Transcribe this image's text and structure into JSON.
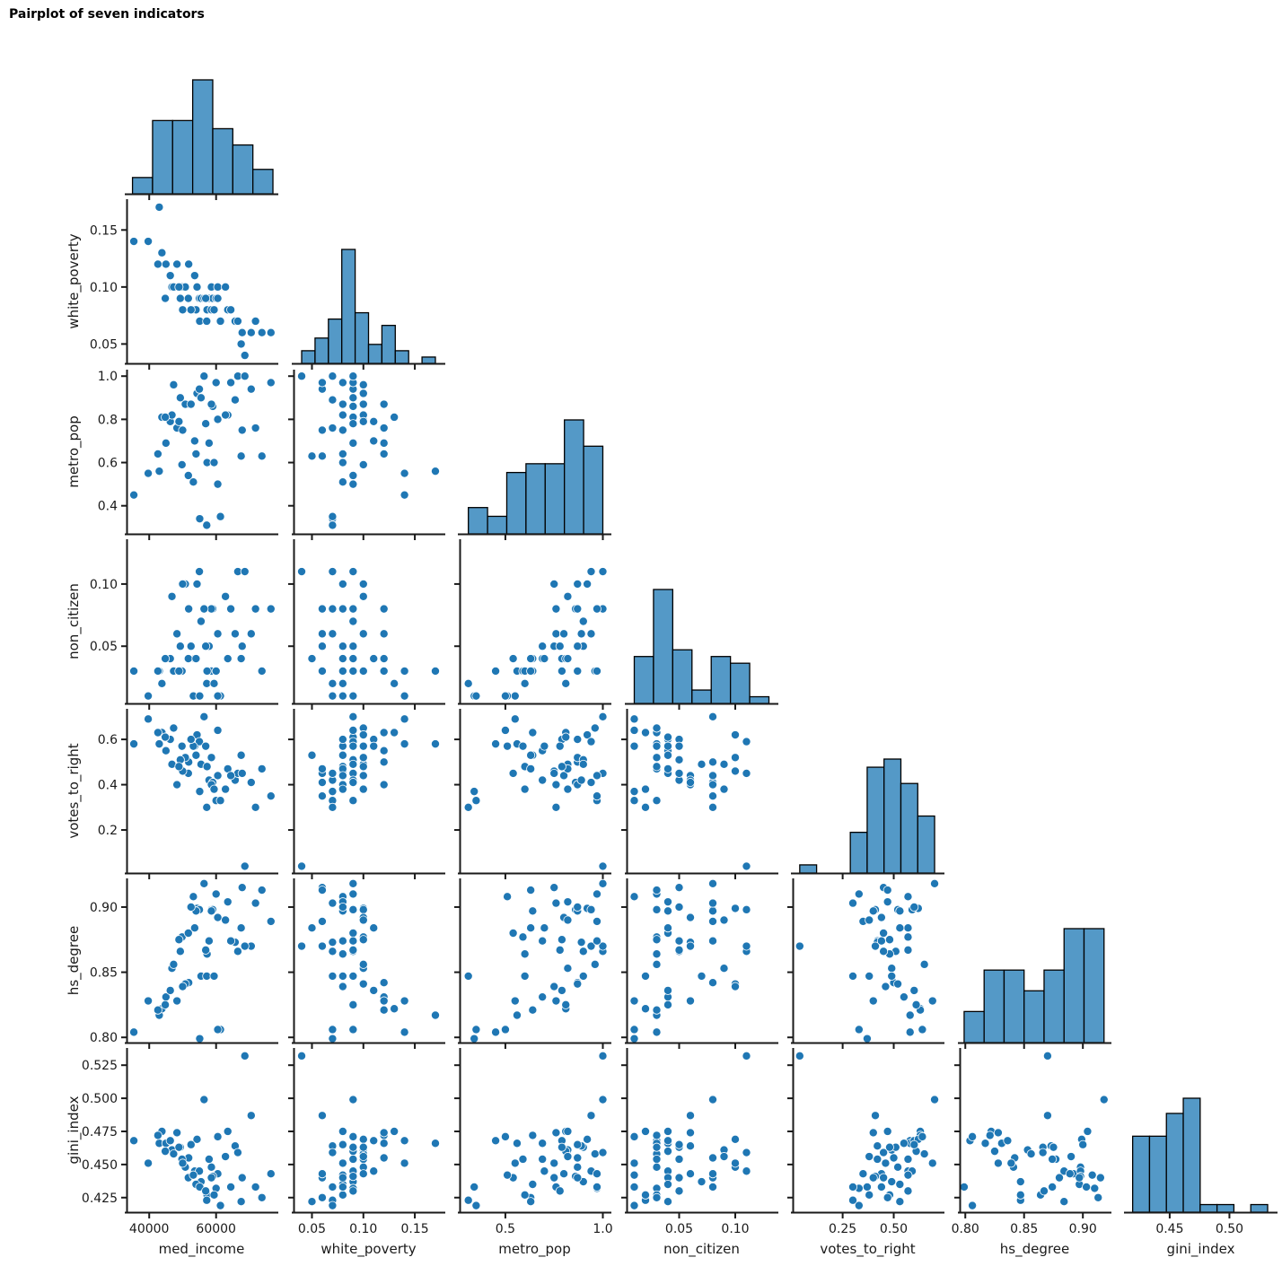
{
  "chart_data": {
    "type": "pairplot",
    "title": "Pairplot of seven indicators",
    "variables": [
      "med_income",
      "white_poverty",
      "metro_pop",
      "non_citizen",
      "votes_to_right",
      "hs_degree",
      "gini_index"
    ],
    "grid": false,
    "corner": true,
    "colors": {
      "point": "#1f77b4",
      "bar_fill": "#5499c7",
      "bar_edge": "#000000",
      "axis": "#1a1a1a"
    },
    "axes": {
      "med_income": {
        "range": [
          33500,
          77800
        ],
        "ticks": [
          40000,
          60000
        ],
        "tick_labels": [
          "40000",
          "60000"
        ]
      },
      "white_poverty": {
        "range": [
          0.033,
          0.177
        ],
        "ticks": [
          0.05,
          0.1,
          0.15
        ],
        "tick_labels": [
          "0.05",
          "0.10",
          "0.15"
        ]
      },
      "metro_pop": {
        "range": [
          0.27,
          1.03
        ],
        "ticks": [
          0.4,
          0.6,
          0.8,
          1.0
        ],
        "tick_labels": [
          "0.4",
          "0.6",
          "0.8",
          "1.0"
        ],
        "x_ticks": [
          0.5,
          1.0
        ],
        "x_tick_labels": [
          "0.5",
          "1.0"
        ]
      },
      "non_citizen": {
        "range": [
          0.004,
          0.136
        ],
        "ticks": [
          0.05,
          0.1
        ],
        "tick_labels": [
          "0.05",
          "0.10"
        ]
      },
      "votes_to_right": {
        "range": [
          0.01,
          0.735
        ],
        "ticks": [
          0.2,
          0.4,
          0.6
        ],
        "tick_labels": [
          "0.2",
          "0.4",
          "0.6"
        ],
        "x_ticks": [
          0.25,
          0.5
        ],
        "x_tick_labels": [
          "0.25",
          "0.50"
        ]
      },
      "hs_degree": {
        "range": [
          0.796,
          0.922
        ],
        "ticks": [
          0.8,
          0.85,
          0.9
        ],
        "tick_labels": [
          "0.80",
          "0.85",
          "0.90"
        ]
      },
      "gini_index": {
        "range": [
          0.414,
          0.538
        ],
        "ticks": [
          0.425,
          0.45,
          0.475,
          0.5,
          0.525
        ],
        "tick_labels": [
          "0.425",
          "0.450",
          "0.475",
          "0.500",
          "0.525"
        ],
        "x_ticks": [
          0.45,
          0.5
        ],
        "x_tick_labels": [
          "0.45",
          "0.50"
        ]
      }
    },
    "histograms": {
      "med_income": {
        "bin_range": [
          35000,
          77000
        ],
        "counts": [
          2,
          9,
          9,
          14,
          8,
          6,
          3
        ]
      },
      "white_poverty": {
        "bin_range": [
          0.04,
          0.17
        ],
        "counts": [
          2,
          4,
          7,
          18,
          8,
          3,
          6,
          2,
          0,
          1
        ]
      },
      "metro_pop": {
        "bin_range": [
          0.31,
          1.0
        ],
        "counts": [
          3,
          2,
          7,
          8,
          8,
          13,
          10
        ]
      },
      "non_citizen": {
        "bin_range": [
          0.01,
          0.13
        ],
        "counts": [
          7,
          17,
          8,
          2,
          7,
          6,
          1
        ]
      },
      "votes_to_right": {
        "bin_range": [
          0.04,
          0.7
        ],
        "counts": [
          1,
          0,
          0,
          5,
          13,
          14,
          11,
          7
        ]
      },
      "hs_degree": {
        "bin_range": [
          0.799,
          0.918
        ],
        "counts": [
          3,
          7,
          7,
          5,
          7,
          11,
          11
        ]
      },
      "gini_index": {
        "bin_range": [
          0.419,
          0.532
        ],
        "counts": [
          10,
          10,
          13,
          15,
          1,
          1,
          0,
          1
        ]
      }
    },
    "records": [
      [
        35400,
        0.14,
        0.45,
        0.03,
        0.58,
        0.804,
        0.468
      ],
      [
        39700,
        0.14,
        0.55,
        0.01,
        0.69,
        0.828,
        0.451
      ],
      [
        43000,
        0.17,
        0.56,
        0.03,
        0.58,
        0.817,
        0.466
      ],
      [
        43800,
        0.13,
        0.81,
        0.02,
        0.63,
        0.822,
        0.475
      ],
      [
        42600,
        0.12,
        0.64,
        0.03,
        0.63,
        0.821,
        0.472
      ],
      [
        45000,
        0.12,
        0.69,
        0.04,
        0.55,
        0.831,
        0.466
      ],
      [
        48300,
        0.12,
        0.76,
        0.06,
        0.4,
        0.828,
        0.474
      ],
      [
        51800,
        0.12,
        0.87,
        0.08,
        0.5,
        0.842,
        0.455
      ],
      [
        46300,
        0.11,
        0.79,
        0.04,
        0.6,
        0.836,
        0.468
      ],
      [
        53600,
        0.11,
        0.7,
        0.04,
        0.57,
        0.884,
        0.445
      ],
      [
        46800,
        0.1,
        0.82,
        0.09,
        0.49,
        0.853,
        0.461
      ],
      [
        47300,
        0.1,
        0.96,
        0.03,
        0.65,
        0.856,
        0.458
      ],
      [
        49800,
        0.1,
        0.59,
        0.03,
        0.57,
        0.877,
        0.454
      ],
      [
        50800,
        0.1,
        0.87,
        0.1,
        0.52,
        0.841,
        0.448
      ],
      [
        54300,
        0.1,
        0.92,
        0.1,
        0.62,
        0.899,
        0.469
      ],
      [
        58600,
        0.1,
        0.87,
        0.03,
        0.52,
        0.898,
        0.448
      ],
      [
        60500,
        0.1,
        0.8,
        0.06,
        0.44,
        0.892,
        0.443
      ],
      [
        44800,
        0.09,
        0.81,
        0.04,
        0.61,
        0.825,
        0.46
      ],
      [
        49300,
        0.09,
        0.9,
        0.05,
        0.51,
        0.866,
        0.463
      ],
      [
        51700,
        0.09,
        0.54,
        0.04,
        0.45,
        0.88,
        0.44
      ],
      [
        55000,
        0.09,
        0.94,
        0.11,
        0.59,
        0.898,
        0.445
      ],
      [
        55500,
        0.09,
        0.9,
        0.07,
        0.49,
        0.847,
        0.437
      ],
      [
        57900,
        0.09,
        0.69,
        0.05,
        0.42,
        0.874,
        0.454
      ],
      [
        59000,
        0.09,
        0.86,
        0.08,
        0.41,
        0.898,
        0.441
      ],
      [
        60000,
        0.09,
        0.97,
        0.03,
        0.33,
        0.91,
        0.432
      ],
      [
        50000,
        0.08,
        0.75,
        0.1,
        0.46,
        0.839,
        0.451
      ],
      [
        53200,
        0.08,
        0.51,
        0.01,
        0.57,
        0.908,
        0.442
      ],
      [
        54000,
        0.08,
        0.64,
        0.04,
        0.53,
        0.897,
        0.435
      ],
      [
        57300,
        0.08,
        0.6,
        0.03,
        0.48,
        0.864,
        0.427
      ],
      [
        58600,
        0.08,
        0.87,
        0.08,
        0.4,
        0.897,
        0.44
      ],
      [
        63500,
        0.08,
        0.82,
        0.04,
        0.47,
        0.904,
        0.475
      ],
      [
        55100,
        0.07,
        0.34,
        0.01,
        0.37,
        0.799,
        0.433
      ],
      [
        57200,
        0.07,
        0.31,
        0.02,
        0.3,
        0.847,
        0.423
      ],
      [
        61300,
        0.07,
        0.35,
        0.01,
        0.33,
        0.806,
        0.419
      ],
      [
        65700,
        0.07,
        0.89,
        0.06,
        0.42,
        0.873,
        0.464
      ],
      [
        66500,
        0.07,
        1.0,
        0.11,
        0.45,
        0.866,
        0.459
      ],
      [
        71800,
        0.07,
        0.76,
        0.08,
        0.3,
        0.903,
        0.433
      ],
      [
        67800,
        0.06,
        0.75,
        0.05,
        0.45,
        0.915,
        0.44
      ],
      [
        70500,
        0.06,
        0.94,
        0.06,
        0.41,
        0.87,
        0.487
      ],
      [
        73700,
        0.06,
        0.63,
        0.03,
        0.47,
        0.913,
        0.425
      ],
      [
        76400,
        0.06,
        0.97,
        0.08,
        0.35,
        0.889,
        0.443
      ],
      [
        67500,
        0.05,
        0.63,
        0.04,
        0.53,
        0.884,
        0.422
      ],
      [
        68600,
        0.04,
        1.0,
        0.11,
        0.04,
        0.87,
        0.532
      ],
      [
        56400,
        0.09,
        1.0,
        0.08,
        0.7,
        0.918,
        0.499
      ],
      [
        60500,
        0.09,
        0.5,
        0.01,
        0.64,
        0.806,
        0.471
      ],
      [
        52500,
        0.08,
        0.87,
        0.05,
        0.6,
        0.9,
        0.465
      ],
      [
        56900,
        0.09,
        0.78,
        0.05,
        0.57,
        0.867,
        0.43
      ],
      [
        59400,
        0.08,
        0.6,
        0.02,
        0.38,
        0.847,
        0.427
      ],
      [
        62800,
        0.1,
        0.82,
        0.09,
        0.38,
        0.89,
        0.456
      ],
      [
        48900,
        0.1,
        0.79,
        0.03,
        0.48,
        0.875,
        0.463
      ],
      [
        64400,
        0.08,
        0.97,
        0.08,
        0.44,
        0.874,
        0.433
      ]
    ]
  }
}
